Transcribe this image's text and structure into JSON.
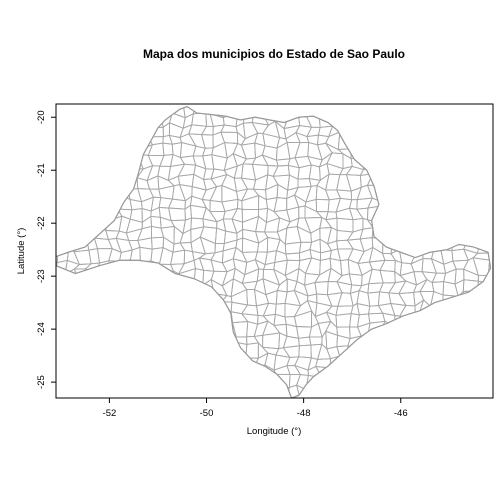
{
  "map": {
    "title": "Mapa dos municipios do Estado de Sao Paulo",
    "xlabel": "Longitude (°)",
    "ylabel": "Latitude (°)",
    "xlim": [
      -53.1,
      -44.1
    ],
    "ylim": [
      -25.3,
      -19.75
    ],
    "x_ticks": [
      {
        "value": -52,
        "label": "-52"
      },
      {
        "value": -50,
        "label": "-50"
      },
      {
        "value": -48,
        "label": "-48"
      },
      {
        "value": -46,
        "label": "-46"
      }
    ],
    "y_ticks": [
      {
        "value": -20,
        "label": "-20"
      },
      {
        "value": -21,
        "label": "-21"
      },
      {
        "value": -22,
        "label": "-22"
      },
      {
        "value": -23,
        "label": "-23"
      },
      {
        "value": -24,
        "label": "-24"
      },
      {
        "value": -25,
        "label": "-25"
      }
    ],
    "line_color": "#a8a8a8",
    "state_outline_lonlat": [
      [
        -53.1,
        -22.63
      ],
      [
        -52.85,
        -22.55
      ],
      [
        -52.5,
        -22.45
      ],
      [
        -52.2,
        -22.2
      ],
      [
        -51.9,
        -21.95
      ],
      [
        -51.7,
        -21.6
      ],
      [
        -51.5,
        -21.35
      ],
      [
        -51.4,
        -21.05
      ],
      [
        -51.3,
        -20.7
      ],
      [
        -51.15,
        -20.45
      ],
      [
        -51.0,
        -20.2
      ],
      [
        -50.85,
        -20.05
      ],
      [
        -50.7,
        -19.95
      ],
      [
        -50.55,
        -19.85
      ],
      [
        -50.4,
        -19.8
      ],
      [
        -50.2,
        -19.92
      ],
      [
        -49.9,
        -19.95
      ],
      [
        -49.6,
        -19.98
      ],
      [
        -49.3,
        -20.05
      ],
      [
        -49.0,
        -20.0
      ],
      [
        -48.7,
        -20.05
      ],
      [
        -48.4,
        -20.1
      ],
      [
        -48.1,
        -20.0
      ],
      [
        -47.8,
        -19.98
      ],
      [
        -47.5,
        -20.1
      ],
      [
        -47.3,
        -20.25
      ],
      [
        -47.15,
        -20.5
      ],
      [
        -46.95,
        -20.8
      ],
      [
        -46.7,
        -21.0
      ],
      [
        -46.55,
        -21.3
      ],
      [
        -46.45,
        -21.65
      ],
      [
        -46.6,
        -21.95
      ],
      [
        -46.55,
        -22.25
      ],
      [
        -46.3,
        -22.45
      ],
      [
        -46.0,
        -22.55
      ],
      [
        -45.7,
        -22.65
      ],
      [
        -45.4,
        -22.55
      ],
      [
        -45.05,
        -22.5
      ],
      [
        -44.8,
        -22.4
      ],
      [
        -44.5,
        -22.45
      ],
      [
        -44.2,
        -22.55
      ],
      [
        -44.15,
        -22.85
      ],
      [
        -44.3,
        -23.1
      ],
      [
        -44.6,
        -23.3
      ],
      [
        -44.95,
        -23.4
      ],
      [
        -45.3,
        -23.5
      ],
      [
        -45.6,
        -23.65
      ],
      [
        -45.95,
        -23.75
      ],
      [
        -46.3,
        -23.9
      ],
      [
        -46.6,
        -24.0
      ],
      [
        -46.9,
        -24.2
      ],
      [
        -47.2,
        -24.45
      ],
      [
        -47.5,
        -24.7
      ],
      [
        -47.8,
        -24.9
      ],
      [
        -47.95,
        -25.05
      ],
      [
        -48.1,
        -25.25
      ],
      [
        -48.25,
        -25.3
      ],
      [
        -48.35,
        -25.05
      ],
      [
        -48.55,
        -24.85
      ],
      [
        -48.8,
        -24.7
      ],
      [
        -49.05,
        -24.6
      ],
      [
        -49.3,
        -24.35
      ],
      [
        -49.45,
        -24.05
      ],
      [
        -49.5,
        -23.7
      ],
      [
        -49.65,
        -23.45
      ],
      [
        -49.9,
        -23.2
      ],
      [
        -50.25,
        -23.05
      ],
      [
        -50.65,
        -22.95
      ],
      [
        -51.0,
        -22.75
      ],
      [
        -51.4,
        -22.7
      ],
      [
        -51.8,
        -22.7
      ],
      [
        -52.2,
        -22.8
      ],
      [
        -52.7,
        -22.95
      ],
      [
        -53.1,
        -22.8
      ]
    ]
  }
}
